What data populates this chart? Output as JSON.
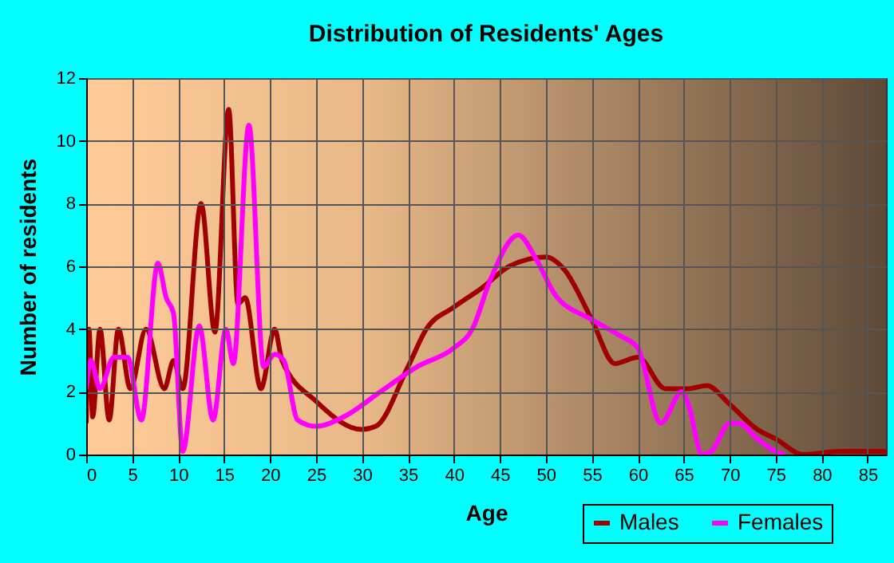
{
  "chart_data": {
    "type": "line",
    "title": "Distribution of Residents' Ages",
    "xlabel": "Age",
    "ylabel": "Number of residents",
    "xlim": [
      0,
      87
    ],
    "xticks": [
      0,
      5,
      10,
      15,
      20,
      25,
      30,
      35,
      40,
      45,
      50,
      55,
      60,
      65,
      70,
      75,
      80,
      85
    ],
    "ylim": [
      0,
      12
    ],
    "yticks": [
      0,
      2,
      4,
      6,
      8,
      10,
      12
    ],
    "grid": true,
    "legend": "bottom right",
    "marker": "none",
    "line_style": "solid",
    "series": [
      {
        "name": "Males",
        "color": "#a00000",
        "x": [
          0,
          0.3,
          0.7,
          1.5,
          2.5,
          3.5,
          4.8,
          6.5,
          8.5,
          9.5,
          10.5,
          12.5,
          14,
          15.5,
          16.5,
          17.3,
          19,
          20.5,
          21.3,
          25,
          30,
          31.5,
          35,
          37,
          40,
          43,
          46,
          50,
          52,
          55,
          57.5,
          60,
          63,
          65.5,
          67.5,
          70,
          73,
          75,
          78,
          82,
          87
        ],
        "values": [
          1,
          4,
          1.2,
          4,
          1.1,
          4,
          2.1,
          4,
          2.1,
          3,
          2.1,
          8,
          3.9,
          11,
          4.8,
          5,
          2.1,
          4,
          3,
          1.7,
          0.8,
          0.9,
          2.8,
          4,
          4.7,
          5.3,
          6,
          6.3,
          5.9,
          4.3,
          2.9,
          3.1,
          2.1,
          2.1,
          2.2,
          1.6,
          0.8,
          0.5,
          0,
          0.1,
          0.1
        ]
      },
      {
        "name": "Females",
        "color": "#ff00ff",
        "x": [
          0,
          0.5,
          1.5,
          3,
          4.5,
          6,
          7.8,
          8.7,
          9.5,
          10.5,
          12.3,
          13.8,
          15.2,
          16,
          17.7,
          19.3,
          20.5,
          21.5,
          23,
          25,
          28,
          32,
          36,
          40,
          42,
          44,
          47,
          49,
          51,
          55,
          58,
          60,
          62.5,
          64.8,
          65.5,
          67,
          68,
          70,
          71,
          73,
          75,
          76
        ],
        "values": [
          2.1,
          3,
          2.1,
          3.1,
          3.1,
          1.1,
          6.1,
          5,
          4.5,
          0.1,
          4.1,
          1.1,
          4,
          2.9,
          10.5,
          2.8,
          3.2,
          3,
          1.1,
          0.9,
          1.2,
          2,
          2.8,
          3.4,
          4,
          5.6,
          7,
          6.2,
          5.1,
          4.3,
          3.8,
          3.4,
          1,
          2,
          1.6,
          0,
          0.1,
          1,
          1,
          0.5,
          0.1,
          0
        ]
      }
    ]
  }
}
